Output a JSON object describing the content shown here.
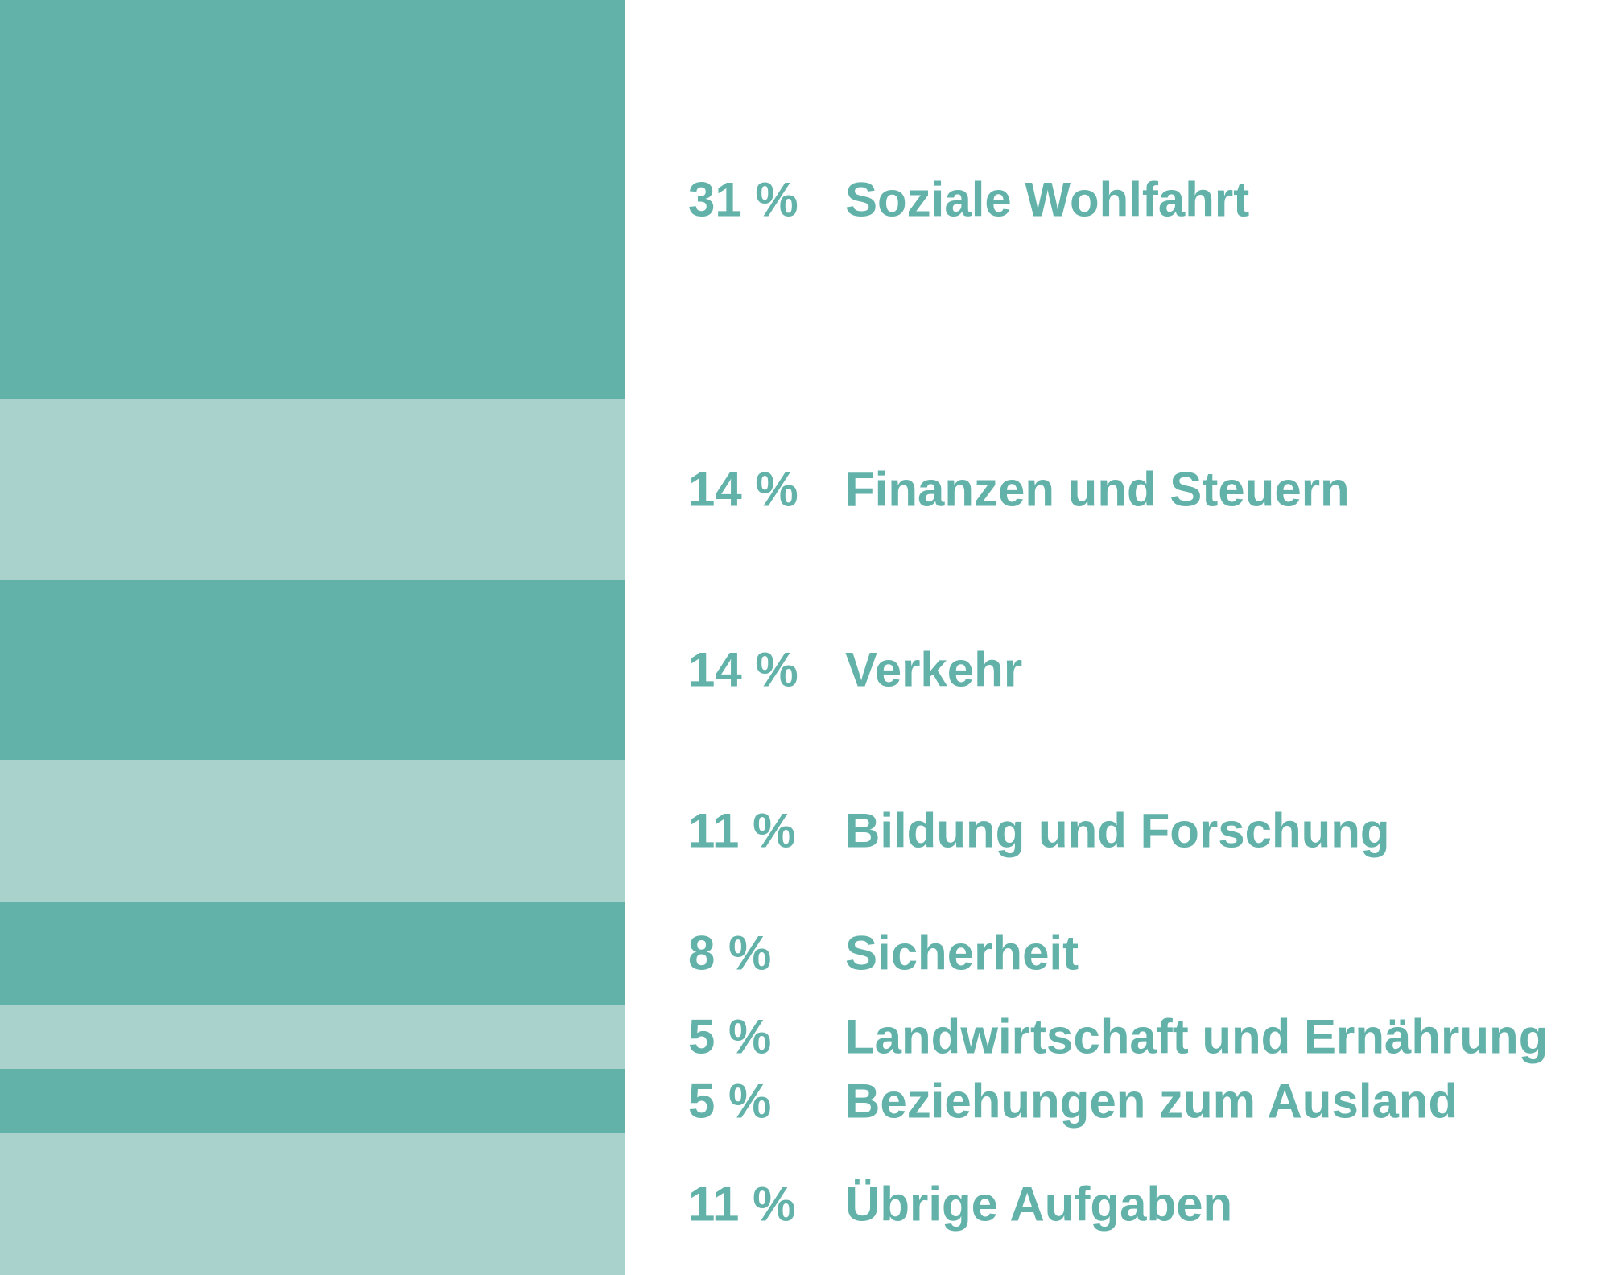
{
  "chart_data": {
    "type": "bar",
    "subtype": "stacked-single-column",
    "unit": "%",
    "colors": {
      "dark": "#62b2a9",
      "light": "#a9d2cd",
      "text": "#62b2a9"
    },
    "segments": [
      {
        "value": 31,
        "value_label": "31 %",
        "label": "Soziale Wohlfahrt",
        "shade": "dark"
      },
      {
        "value": 14,
        "value_label": "14 %",
        "label": "Finanzen und Steuern",
        "shade": "light"
      },
      {
        "value": 14,
        "value_label": "14 %",
        "label": "Verkehr",
        "shade": "dark"
      },
      {
        "value": 11,
        "value_label": "11 %",
        "label": "Bildung und Forschung",
        "shade": "light"
      },
      {
        "value": 8,
        "value_label": "8 %",
        "label": "Sicherheit",
        "shade": "dark"
      },
      {
        "value": 5,
        "value_label": "5 %",
        "label": "Landwirtschaft und Ernährung",
        "shade": "light"
      },
      {
        "value": 5,
        "value_label": "5 %",
        "label": "Beziehungen zum Ausland",
        "shade": "dark"
      },
      {
        "value": 11,
        "value_label": "11 %",
        "label": "Übrige Aufgaben",
        "shade": "light"
      }
    ]
  }
}
